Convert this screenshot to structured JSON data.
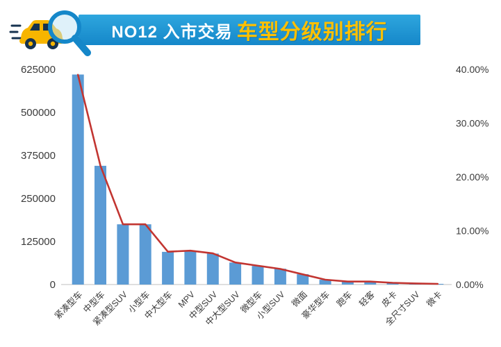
{
  "header": {
    "title_prefix": "NO12 入市交易",
    "title_highlight": "车型分级别排行",
    "banner_color": "#1d9ad2",
    "highlight_color": "#ffc000"
  },
  "chart_data": {
    "type": "bar",
    "combo": "bar+line",
    "title": "NO12 入市交易车型分级别排行",
    "categories": [
      "紧凑型车",
      "中型车",
      "紧凑型SUV",
      "小型车",
      "中大型车",
      "MPV",
      "中型SUV",
      "中大型SUV",
      "微型车",
      "小型SUV",
      "微面",
      "豪华型车",
      "跑车",
      "轻客",
      "皮卡",
      "全尺寸SUV",
      "微卡"
    ],
    "bar_values": [
      610000,
      345000,
      175000,
      175000,
      95000,
      98000,
      90000,
      64000,
      54000,
      46000,
      30000,
      14000,
      8500,
      8500,
      5000,
      3000,
      2000
    ],
    "line_values_percent": [
      39.0,
      22.1,
      11.2,
      11.2,
      6.1,
      6.3,
      5.8,
      4.1,
      3.5,
      2.9,
      1.9,
      0.9,
      0.55,
      0.55,
      0.32,
      0.2,
      0.13
    ],
    "bar_color": "#5b9bd5",
    "line_color": "#c23531",
    "y_axis_left": {
      "min": 0,
      "max": 625000,
      "tick_labels": [
        "0",
        "125000",
        "250000",
        "375000",
        "500000",
        "625000"
      ]
    },
    "y_axis_right": {
      "min": 0,
      "max": 40,
      "tick_labels": [
        "0.00%",
        "10.00%",
        "20.00%",
        "30.00%",
        "40.00%"
      ]
    },
    "legend": "none",
    "grid": false,
    "x_label_rotation": -45
  }
}
